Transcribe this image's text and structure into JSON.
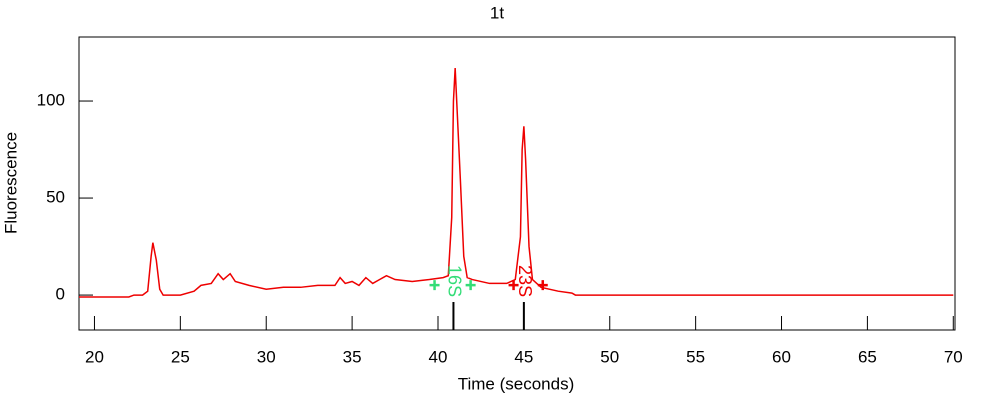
{
  "chart_data": {
    "type": "line",
    "title": "1t",
    "xlabel": "Time (seconds)",
    "ylabel": "Fluorescence",
    "color": "#ee0000",
    "x": [
      19.1,
      22,
      22.3,
      22.8,
      23.1,
      23.3,
      23.4,
      23.6,
      23.8,
      24,
      25,
      25.8,
      26.2,
      26.8,
      27.2,
      27.5,
      27.9,
      28.2,
      29,
      30,
      31,
      32,
      33,
      34,
      34.3,
      34.6,
      35,
      35.4,
      35.8,
      36.2,
      37,
      37.5,
      38.5,
      39.5,
      40.3,
      40.6,
      40.8,
      40.9,
      41.0,
      41.1,
      41.3,
      41.5,
      41.7,
      42,
      43,
      44,
      44.5,
      44.8,
      44.9,
      45.0,
      45.1,
      45.3,
      45.5,
      46,
      47,
      47.8,
      48,
      70
    ],
    "values": [
      -1,
      -1,
      0,
      0,
      2,
      20,
      27,
      18,
      3,
      0,
      0,
      2,
      5,
      6,
      11,
      8,
      11,
      7,
      5,
      3,
      4,
      4,
      5,
      5,
      9,
      6,
      7,
      5,
      9,
      6,
      10,
      8,
      7,
      8,
      9,
      10,
      40,
      100,
      117,
      98,
      60,
      20,
      9,
      8,
      6,
      6,
      8,
      30,
      75,
      87,
      70,
      25,
      8,
      4,
      2,
      1,
      0,
      0
    ],
    "xlim": [
      19.1,
      70.1
    ],
    "ylim": [
      -18,
      133
    ],
    "xticks": [
      20,
      25,
      30,
      35,
      40,
      45,
      50,
      55,
      60,
      65,
      70
    ],
    "yticks": [
      0,
      50,
      100
    ],
    "annotations": [
      {
        "label": "16S",
        "x": 40.9,
        "start": 39.8,
        "end": 41.9,
        "color": "#33dd77"
      },
      {
        "label": "23S",
        "x": 45.0,
        "start": 44.4,
        "end": 46.1,
        "color": "#ee0000"
      }
    ]
  }
}
